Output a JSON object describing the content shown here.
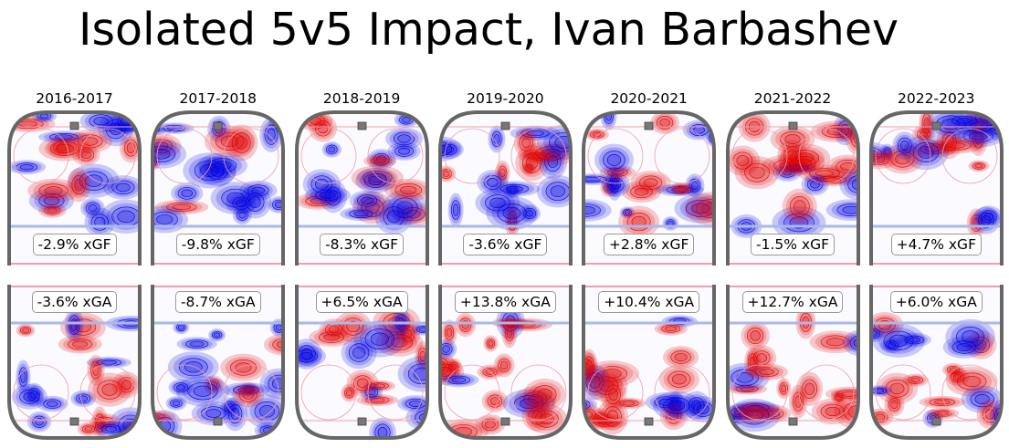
{
  "title": "Isolated 5v5 Impact, Ivan Barbashev",
  "chart_data": {
    "type": "heatmap",
    "title": "Isolated 5v5 Impact, Ivan Barbashev",
    "seasons": [
      "2016-2017",
      "2017-2018",
      "2018-2019",
      "2019-2020",
      "2020-2021",
      "2021-2022",
      "2022-2023"
    ],
    "xGF_labels": [
      "-2.9% xGF",
      "-9.8% xGF",
      "-8.3% xGF",
      "-3.6% xGF",
      "+2.8% xGF",
      "-1.5% xGF",
      "+4.7% xGF"
    ],
    "xGA_labels": [
      "-3.6% xGA",
      "-8.7% xGA",
      "+6.5% xGA",
      "+13.8% xGA",
      "+10.4% xGA",
      "+12.7% xGA",
      "+6.0% xGA"
    ],
    "xGF_pct": [
      -2.9,
      -9.8,
      -8.3,
      -3.6,
      2.8,
      -1.5,
      4.7
    ],
    "xGA_pct": [
      -3.6,
      -8.7,
      6.5,
      13.8,
      10.4,
      12.7,
      6.0
    ],
    "colors": {
      "positive": "#e00000",
      "negative": "#0000e0",
      "boards": "#666666",
      "blue_line": "#aab8ea",
      "red_line": "#f0a0a8"
    }
  }
}
